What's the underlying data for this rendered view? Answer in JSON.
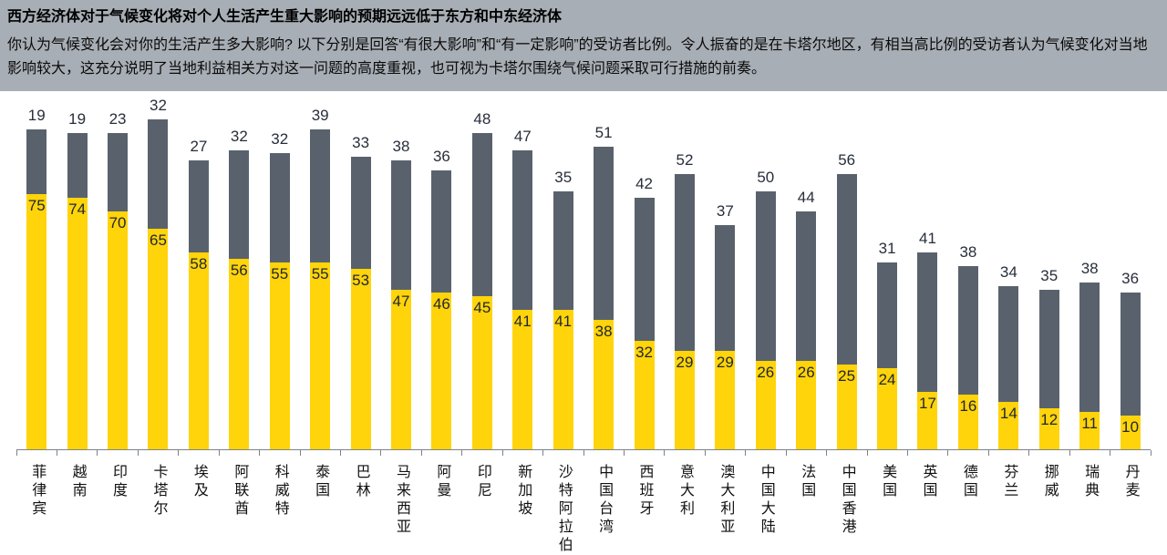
{
  "header": {
    "title": "西方经济体对于气候变化将对个人生活产生重大影响的预期远远低于东方和中东经济体",
    "subtitle": "你认为气候变化会对你的生活产生多大影响? 以下分别是回答“有很大影响”和“有一定影响”的受访者比例。令人振奋的是在卡塔尔地区，有相当高比例的受访者认为气候变化对当地影响较大，这充分说明了当地利益相关方对这一问题的高度重视，也可视为卡塔尔围绕气候问题采取可行措施的前奏。"
  },
  "chart_data": {
    "type": "bar",
    "stacked": true,
    "orientation": "vertical",
    "unit": "%",
    "ylim": [
      0,
      100
    ],
    "grid": false,
    "legend_visible": false,
    "value_labels": "gray value above bar, yellow value inside yellow segment",
    "categories": [
      "菲律宾",
      "越南",
      "印度",
      "卡塔尔",
      "埃及",
      "阿联酋",
      "科威特",
      "泰国",
      "巴林",
      "马来西亚",
      "阿曼",
      "印尼",
      "新加坡",
      "沙特阿拉伯",
      "中国台湾",
      "西班牙",
      "意大利",
      "澳大利亚",
      "中国大陆",
      "法国",
      "中国香港",
      "美国",
      "英国",
      "德国",
      "芬兰",
      "挪威",
      "瑞典",
      "丹麦"
    ],
    "series": [
      {
        "name": "有很大影响",
        "color": "#FFD40A",
        "values": [
          75,
          74,
          70,
          65,
          58,
          56,
          55,
          55,
          53,
          47,
          46,
          45,
          41,
          41,
          38,
          32,
          29,
          29,
          26,
          26,
          25,
          24,
          17,
          16,
          14,
          12,
          11,
          10
        ]
      },
      {
        "name": "有一定影响",
        "color": "#59626C",
        "values": [
          19,
          19,
          23,
          32,
          27,
          32,
          32,
          39,
          33,
          38,
          36,
          48,
          47,
          35,
          51,
          42,
          52,
          37,
          50,
          44,
          56,
          31,
          41,
          38,
          34,
          35,
          38,
          36
        ]
      }
    ]
  },
  "colors": {
    "header_background": "#A8AEB5",
    "axis": "#7C828A",
    "value_label": "#272E3A",
    "title_text": "#000000"
  }
}
